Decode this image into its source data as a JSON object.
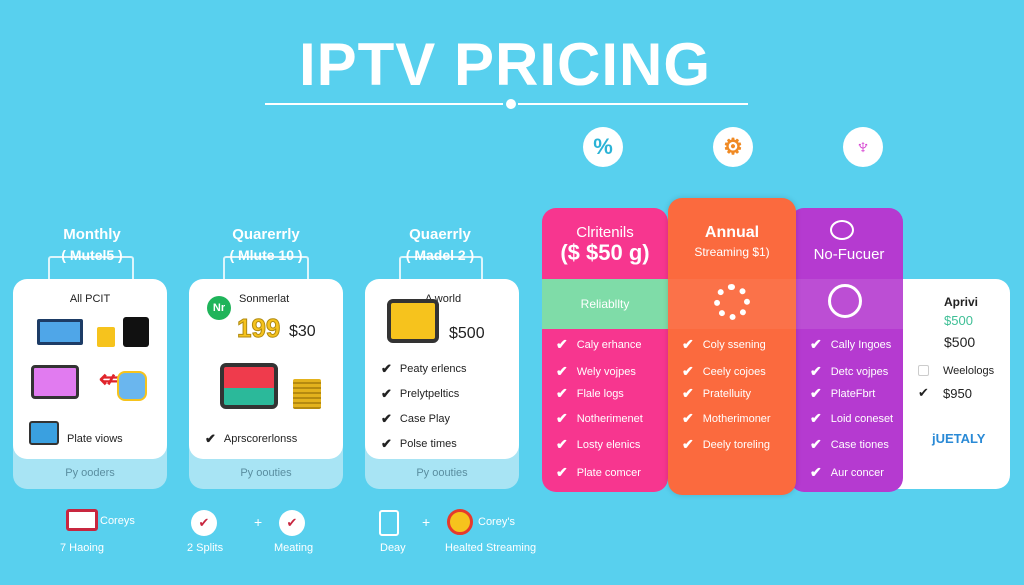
{
  "title": "IPTV PRICING",
  "top_icons": [
    {
      "icon": "percent-icon",
      "glyph": "%",
      "color": "#2bb3d6"
    },
    {
      "icon": "gear-icon",
      "glyph": "⚙",
      "color": "#f08a24"
    },
    {
      "icon": "butterfly-icon",
      "glyph": "♆",
      "color": "#d43bd0"
    }
  ],
  "plans": [
    {
      "label": "Monthly",
      "sub": "( Mutel5 )",
      "heading": "All PCIT",
      "caption": "Plate viows",
      "footer": "Py ooders"
    },
    {
      "label": "Quarerrly",
      "sub": "( Mlute 10 )",
      "badge": "Nr",
      "heading": "Sonmerlat",
      "price_big": "199",
      "price": "$30",
      "features": [
        "Aprscorerlonss"
      ],
      "footer": "Py oouties"
    },
    {
      "label": "Quaerrly",
      "sub": "( Madel 2 )",
      "heading": "A world",
      "price": "$500",
      "features": [
        "Peaty erlencs",
        "Prelytpeltics",
        "Case Play",
        "Polse times"
      ],
      "footer": "Py oouties"
    }
  ],
  "columns": [
    {
      "title": "Clritenils",
      "price": "($ $50 g)",
      "band": "Reliabllty",
      "color": "#f7368f",
      "band_color": "#7fdca8",
      "features": [
        "Caly erhance",
        "Wely vojpes",
        "Flale logs",
        "Notherimenet",
        "Losty elenics",
        "Plate comcer"
      ]
    },
    {
      "title": "Annual",
      "subtitle": "Streaming $1)",
      "color": "#fb6a3e",
      "features": [
        "Coly ssening",
        "Ceely cojoes",
        "Pratelluity",
        "Motherimoner",
        "Deely toreling"
      ]
    },
    {
      "title": "No-Fucuer",
      "color": "#b53ad0",
      "features": [
        "Cally Ingoes",
        "Detc vojpes",
        "PlateFbrt",
        "Loid coneset",
        "Case tiones",
        "Aur concer"
      ]
    }
  ],
  "side_card": {
    "title": "Aprivi",
    "price_green": "$500",
    "price": "$500",
    "option": "Weelologs",
    "checked_price": "$950",
    "logo": "jUETALY"
  },
  "bottom": [
    {
      "icon": "monitor-icon",
      "label": "Coreys",
      "caption": "7 Haoing"
    },
    {
      "icon": "check-circle-icon",
      "caption": "2 Splits"
    },
    {
      "icon": "check-circle-icon",
      "caption": "Meating"
    },
    {
      "icon": "devices-icon",
      "caption": "Deay"
    },
    {
      "icon": "trophy-icon",
      "label": "Corey's",
      "caption": "Healted Streaming"
    }
  ],
  "plus": "+"
}
